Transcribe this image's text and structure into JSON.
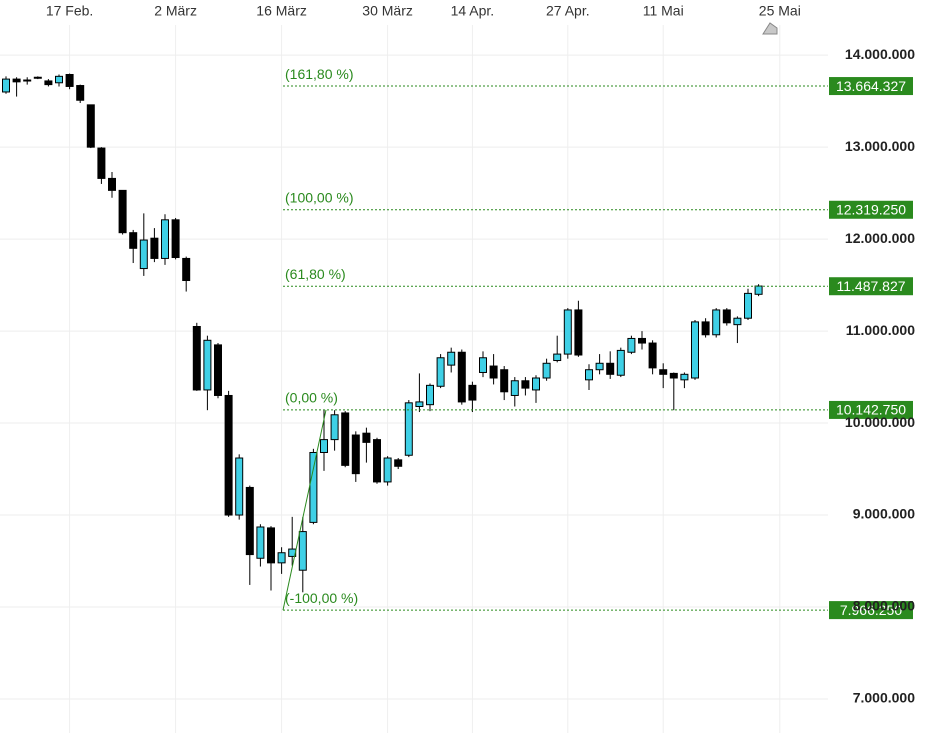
{
  "chart_data": {
    "type": "candlestick",
    "categories": [
      null,
      null,
      null,
      null,
      null,
      null,
      "17 Feb.",
      null,
      null,
      null,
      null,
      null,
      null,
      null,
      null,
      null,
      "2 März",
      null,
      null,
      null,
      null,
      null,
      null,
      null,
      null,
      null,
      "16 März",
      null,
      null,
      null,
      null,
      null,
      null,
      null,
      null,
      null,
      "30 März",
      null,
      null,
      null,
      null,
      null,
      null,
      null,
      "14 Apr.",
      null,
      null,
      null,
      null,
      null,
      null,
      null,
      null,
      "27 Apr.",
      null,
      null,
      null,
      null,
      null,
      null,
      null,
      null,
      "11 Mai",
      null,
      null,
      null,
      null,
      null,
      null,
      null,
      null,
      null,
      null,
      "25 Mai"
    ],
    "open": [
      13600000,
      13740000,
      13730000,
      13760000,
      13720000,
      13700000,
      13790000,
      13670000,
      13460000,
      12990000,
      12660000,
      12530000,
      12070000,
      11680000,
      12010000,
      11790000,
      12210000,
      11790000,
      11050000,
      10360000,
      10850000,
      10300000,
      9000000,
      9300000,
      8530000,
      8860000,
      8480000,
      8550000,
      8400000,
      8920000,
      9680000,
      9820000,
      10110000,
      9870000,
      9890000,
      9820000,
      9360000,
      9600000,
      9650000,
      10180000,
      10200000,
      10400000,
      10630000,
      10770000,
      10410000,
      10550000,
      10620000,
      10580000,
      10300000,
      10460000,
      10360000,
      10490000,
      10680000,
      10750000,
      11230000,
      10470000,
      10580000,
      10650000,
      10520000,
      10770000,
      10920000,
      10870000,
      10580000,
      10540000,
      10470000,
      10490000,
      11100000,
      10960000,
      11230000,
      11070000,
      11140000,
      11400000,
      null,
      null
    ],
    "high": [
      13770000,
      13760000,
      13760000,
      13770000,
      13740000,
      13790000,
      13800000,
      13680000,
      13460000,
      13000000,
      12730000,
      12530000,
      12100000,
      12280000,
      12120000,
      12270000,
      12230000,
      11810000,
      11090000,
      10950000,
      10870000,
      10350000,
      9660000,
      9320000,
      8900000,
      8880000,
      8650000,
      8980000,
      8980000,
      9720000,
      10140000,
      10140000,
      10130000,
      9910000,
      9950000,
      9840000,
      9640000,
      9620000,
      10250000,
      10540000,
      10430000,
      10750000,
      10820000,
      10800000,
      10450000,
      10780000,
      10750000,
      10620000,
      10500000,
      10500000,
      10520000,
      10700000,
      10950000,
      11250000,
      11330000,
      10640000,
      10750000,
      10780000,
      10820000,
      10950000,
      11000000,
      10900000,
      10650000,
      10550000,
      10550000,
      11120000,
      11140000,
      11250000,
      11250000,
      11160000,
      11460000,
      11510000,
      null,
      null
    ],
    "low": [
      13580000,
      13550000,
      13680000,
      13740000,
      13660000,
      13660000,
      13630000,
      13480000,
      12990000,
      12600000,
      12450000,
      12050000,
      11740000,
      11600000,
      11750000,
      11720000,
      11780000,
      11430000,
      10350000,
      10140000,
      10270000,
      8980000,
      8950000,
      8240000,
      8440000,
      8180000,
      8360000,
      8450000,
      8160000,
      8900000,
      9480000,
      9700000,
      9520000,
      9360000,
      9570000,
      9340000,
      9320000,
      9500000,
      9630000,
      10120000,
      10130000,
      10380000,
      10550000,
      10200000,
      10120000,
      10500000,
      10420000,
      10250000,
      10180000,
      10300000,
      10220000,
      10460000,
      10660000,
      10700000,
      10720000,
      10360000,
      10530000,
      10480000,
      10500000,
      10750000,
      10800000,
      10530000,
      10380000,
      10140000,
      10380000,
      10470000,
      10930000,
      10930000,
      11060000,
      10870000,
      11120000,
      11380000,
      null,
      null
    ],
    "close": [
      13740000,
      13710000,
      13720000,
      13750000,
      13680000,
      13770000,
      13660000,
      13510000,
      13000000,
      12660000,
      12530000,
      12070000,
      11900000,
      11990000,
      11790000,
      12210000,
      11800000,
      11550000,
      10360000,
      10900000,
      10300000,
      9000000,
      9620000,
      8570000,
      8870000,
      8480000,
      8590000,
      8630000,
      8820000,
      9680000,
      9820000,
      10090000,
      9540000,
      9450000,
      9790000,
      9360000,
      9620000,
      9530000,
      10220000,
      10230000,
      10410000,
      10710000,
      10770000,
      10230000,
      10250000,
      10710000,
      10490000,
      10340000,
      10460000,
      10380000,
      10490000,
      10650000,
      10750000,
      11230000,
      10740000,
      10580000,
      10650000,
      10530000,
      10790000,
      10920000,
      10870000,
      10600000,
      10530000,
      10490000,
      10530000,
      11100000,
      10960000,
      11230000,
      11090000,
      11140000,
      11410000,
      11490000,
      null,
      null
    ],
    "up_color": "#3fd0e6",
    "down_color": "#000000",
    "ylim": [
      6630000,
      14600000
    ],
    "yticks": [
      {
        "value": 7000000,
        "label": "7.000.000"
      },
      {
        "value": 8000000,
        "label": "8.000.000"
      },
      {
        "value": 9000000,
        "label": "9.000.000"
      },
      {
        "value": 10000000,
        "label": "10.000.000"
      },
      {
        "value": 11000000,
        "label": "11.000.000"
      },
      {
        "value": 12000000,
        "label": "12.000.000"
      },
      {
        "value": 13000000,
        "label": "13.000.000"
      },
      {
        "value": 14000000,
        "label": "14.000.000"
      }
    ],
    "grid": true,
    "fibonacci": {
      "color": "#2a8a1e",
      "levels": [
        {
          "label": "(161,80 %)",
          "value": 13664327,
          "value_label": "13.664.327"
        },
        {
          "label": "(100,00 %)",
          "value": 12319250,
          "value_label": "12.319.250"
        },
        {
          "label": "(61,80 %)",
          "value": 11487827,
          "value_label": "11.487.827"
        },
        {
          "label": "(0,00 %)",
          "value": 10142750,
          "value_label": "10.142.750"
        },
        {
          "label": "(-100,00 %)",
          "value": 7966250,
          "value_label": "7.966.250"
        }
      ]
    }
  }
}
